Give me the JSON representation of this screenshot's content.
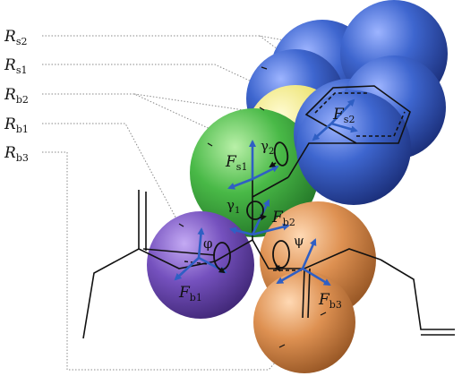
{
  "labels": {
    "Rs2": {
      "main": "R",
      "sub": "s2"
    },
    "Rs1": {
      "main": "R",
      "sub": "s1"
    },
    "Rb2": {
      "main": "R",
      "sub": "b2"
    },
    "Rb1": {
      "main": "R",
      "sub": "b1"
    },
    "Rb3": {
      "main": "R",
      "sub": "b3"
    },
    "Fs2": {
      "main": "F",
      "sub": "s2"
    },
    "Fs1": {
      "main": "F",
      "sub": "s1"
    },
    "Fb2": {
      "main": "F",
      "sub": "b2"
    },
    "Fb1": {
      "main": "F",
      "sub": "b1"
    },
    "Fb3": {
      "main": "F",
      "sub": "b3"
    },
    "gamma2": {
      "main": "γ",
      "sub": "2"
    },
    "gamma1": {
      "main": "γ",
      "sub": "1"
    },
    "phi": {
      "main": "φ"
    },
    "psi": {
      "main": "ψ"
    }
  },
  "colors": {
    "blue_sphere": "#2f56b8",
    "yellow_sphere": "#e8e070",
    "green_sphere": "#3fae3f",
    "purple_sphere": "#6e49b3",
    "orange_sphere": "#d98a4a",
    "force_arrow": "#2f5fc4",
    "leader_line": "#8a8a8a",
    "bond_line": "#111111"
  }
}
